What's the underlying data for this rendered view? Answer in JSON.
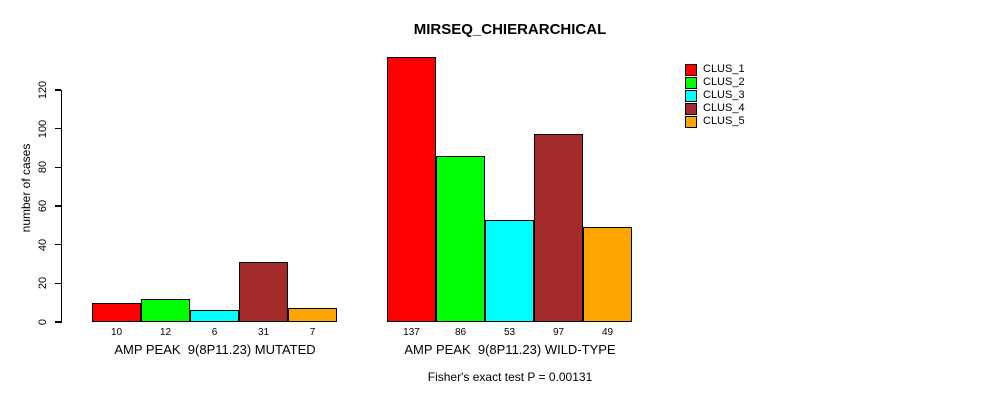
{
  "chart_data": {
    "type": "bar",
    "title": "MIRSEQ_CHIERARCHICAL",
    "ylabel": "number of cases",
    "xlabel": "",
    "yticks": [
      0,
      20,
      40,
      60,
      80,
      100,
      120
    ],
    "ylim": [
      0,
      140
    ],
    "grid": false,
    "legend_position": "right",
    "series": [
      {
        "name": "CLUS_1",
        "color": "#ff0000",
        "values": [
          10,
          137
        ]
      },
      {
        "name": "CLUS_2",
        "color": "#00ff00",
        "values": [
          12,
          86
        ]
      },
      {
        "name": "CLUS_3",
        "color": "#00ffff",
        "values": [
          6,
          53
        ]
      },
      {
        "name": "CLUS_4",
        "color": "#a52a2a",
        "values": [
          31,
          97
        ]
      },
      {
        "name": "CLUS_5",
        "color": "#ffa500",
        "values": [
          7,
          49
        ]
      }
    ],
    "groups": [
      {
        "label": "AMP PEAK  9(8P11.23) MUTATED",
        "values": [
          10,
          12,
          6,
          31,
          7
        ]
      },
      {
        "label": "AMP PEAK  9(8P11.23) WILD-TYPE",
        "values": [
          137,
          86,
          53,
          97,
          49
        ]
      }
    ],
    "annotation": "Fisher's exact test P = 0.00131"
  },
  "colors": {
    "background": "#ffffff",
    "axis": "#000000",
    "text": "#000000"
  }
}
